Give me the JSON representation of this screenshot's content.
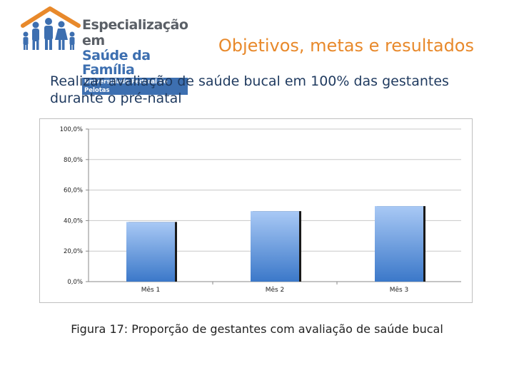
{
  "header": {
    "logo": {
      "line1": "Especialização em",
      "line2": "Saúde da Família",
      "line3": "Universidade Federal de Pelotas"
    },
    "title": "Objetivos, metas e resultados"
  },
  "subtitle": "Realizar avaliação de saúde bucal em 100% das gestantes durante o pré-natal",
  "caption": "Figura 17: Proporção de gestantes com avaliação de saúde bucal",
  "colors": {
    "title": "#e8892b",
    "bar_top": "#a9c9f5",
    "bar_bottom": "#3b78c9"
  },
  "chart_data": {
    "type": "bar",
    "categories": [
      "Mês 1",
      "Mês 2",
      "Mês 3"
    ],
    "values": [
      39.1,
      46.2,
      49.5
    ],
    "ylim": [
      0,
      100
    ],
    "yticks": [
      "0,0%",
      "20,0%",
      "40,0%",
      "60,0%",
      "80,0%",
      "100,0%"
    ],
    "ytick_values": [
      0,
      20,
      40,
      60,
      80,
      100
    ],
    "grid": true,
    "legend": "none"
  }
}
